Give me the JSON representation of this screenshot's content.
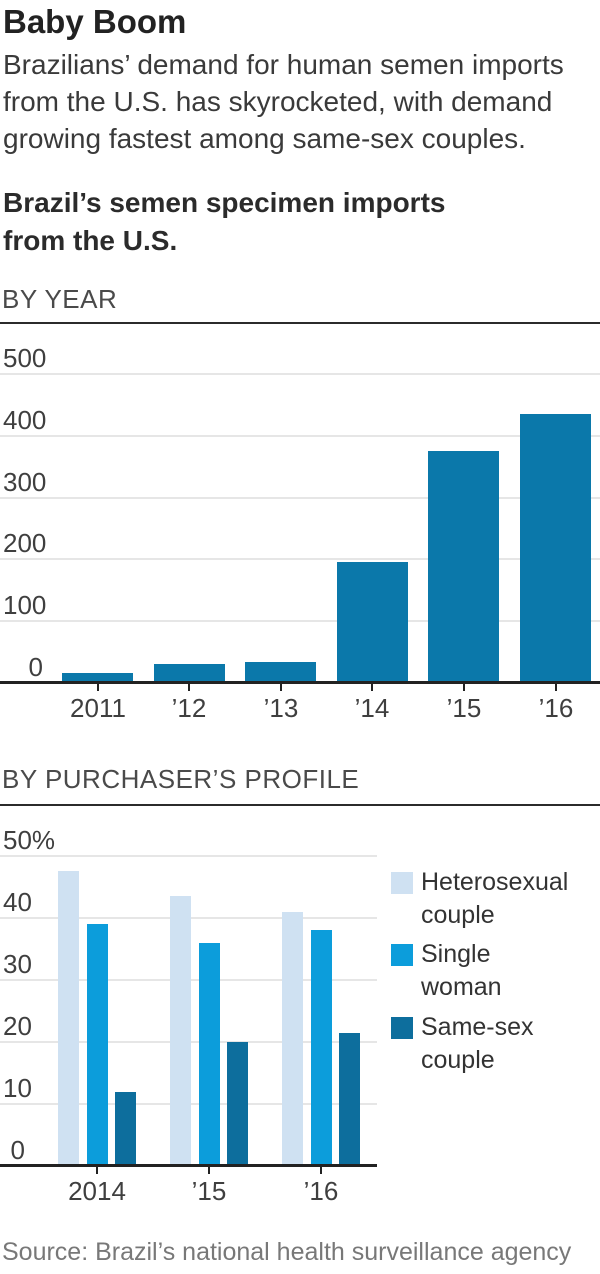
{
  "header": {
    "title": "Baby Boom",
    "subtitle_lines": [
      "Brazilians’ demand for human semen imports",
      "from the U.S. has skyrocketed, with demand",
      "growing fastest among same-sex couples."
    ],
    "chart_title_lines": [
      "Brazil’s semen specimen imports",
      "from the U.S."
    ]
  },
  "source": "Source: Brazil’s national health surveillance agency",
  "chart_data": [
    {
      "type": "bar",
      "section_label": "BY YEAR",
      "categories": [
        "2011",
        "’12",
        "’13",
        "’14",
        "’15",
        "’16"
      ],
      "values": [
        16,
        30,
        34,
        195,
        375,
        435
      ],
      "bar_color": "#0b78aa",
      "ylim": [
        0,
        500
      ],
      "ytick_step": 100,
      "ytick_labels": [
        "0",
        "100",
        "200",
        "300",
        "400",
        "500"
      ],
      "grid": true,
      "legend_position": "none"
    },
    {
      "type": "bar",
      "section_label": "BY PURCHASER’S PROFILE",
      "categories": [
        "2014",
        "’15",
        "’16"
      ],
      "series": [
        {
          "name": "Heterosexual couple",
          "legend_lines": [
            "Heterosexual",
            "couple"
          ],
          "color": "#cfe1f2",
          "values": [
            47.5,
            43.5,
            41
          ]
        },
        {
          "name": "Single woman",
          "legend_lines": [
            "Single",
            "woman"
          ],
          "color": "#0c9ddb",
          "values": [
            39,
            36,
            38
          ]
        },
        {
          "name": "Same-sex couple",
          "legend_lines": [
            "Same-sex",
            "couple"
          ],
          "color": "#0d6e9d",
          "values": [
            12,
            20,
            21.5
          ]
        }
      ],
      "ylim": [
        0,
        50
      ],
      "ytick_step": 10,
      "ytick_labels": [
        "0",
        "10",
        "20",
        "30",
        "40",
        "50%"
      ],
      "grid": true,
      "legend_position": "right"
    }
  ]
}
